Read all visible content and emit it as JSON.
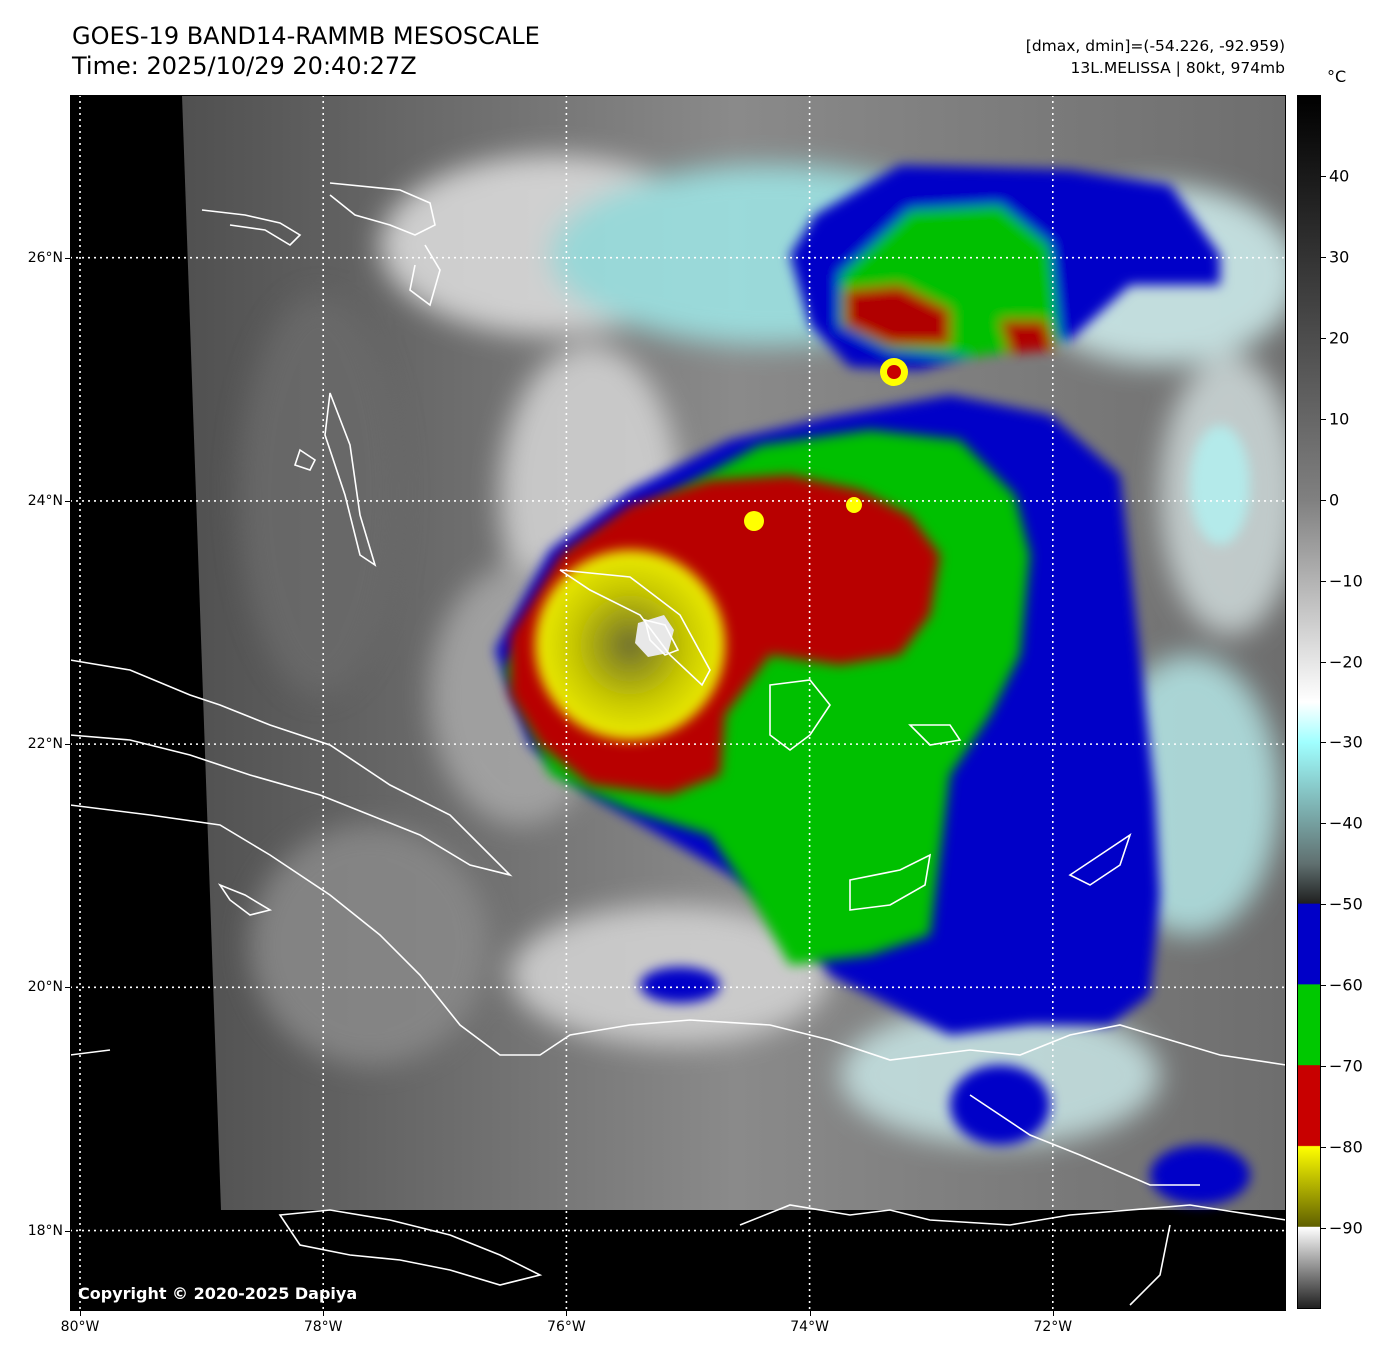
{
  "header": {
    "title": "GOES-19 BAND14-RAMMB MESOSCALE",
    "time": "Time: 2025/10/29 20:40:27Z",
    "range": "[dmax, dmin]=(-54.226, -92.959)",
    "storm": "13L.MELISSA | 80kt, 974mb"
  },
  "map": {
    "lon_range": [
      -80,
      -70
    ],
    "lat_range": [
      17.7,
      27.7
    ],
    "lon_ticks": [
      {
        "value": -80,
        "label": "80°W"
      },
      {
        "value": -78,
        "label": "78°W"
      },
      {
        "value": -76,
        "label": "76°W"
      },
      {
        "value": -74,
        "label": "74°W"
      },
      {
        "value": -72,
        "label": "72°W"
      }
    ],
    "lat_ticks": [
      {
        "value": 26,
        "label": "26°N"
      },
      {
        "value": 24,
        "label": "24°N"
      },
      {
        "value": 22,
        "label": "22°N"
      },
      {
        "value": 20,
        "label": "20°N"
      },
      {
        "value": 18,
        "label": "18°N"
      }
    ],
    "storm_center": {
      "lon": -75.4,
      "lat": 23.1
    },
    "copyright": "Copyright © 2020-2025 Dapiya",
    "gridline_style": "dotted white"
  },
  "colorbar": {
    "unit": "°C",
    "range": [
      -100,
      50
    ],
    "ticks": [
      40,
      30,
      20,
      10,
      0,
      -10,
      -20,
      -30,
      -40,
      -50,
      -60,
      -70,
      -80,
      -90
    ],
    "tick_labels": [
      "40",
      "30",
      "20",
      "10",
      "0",
      "−10",
      "−20",
      "−30",
      "−40",
      "−50",
      "−60",
      "−70",
      "−80",
      "−90"
    ],
    "colors": {
      "warm_black": "#000000",
      "gray_mid": "#808080",
      "white": "#ffffff",
      "cyan": "#a0ffff",
      "blue": "#0000c8",
      "green": "#00c800",
      "red": "#c80000",
      "yellow": "#ffff00",
      "olive": "#606000"
    }
  }
}
